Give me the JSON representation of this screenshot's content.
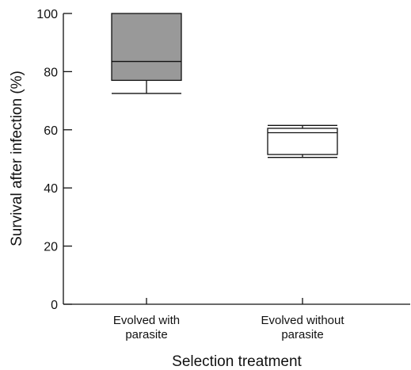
{
  "chart_data": {
    "type": "bar",
    "xlabel": "Selection treatment",
    "ylabel": "Survival after infection (%)",
    "ylim": [
      0,
      100
    ],
    "yticks": [
      "0",
      "20",
      "40",
      "60",
      "80",
      "100"
    ],
    "categories": [
      [
        "Evolved with",
        "parasite"
      ],
      [
        "Evolved without",
        "parasite"
      ]
    ],
    "series": [
      {
        "min": 72.5,
        "q1": 77,
        "median": 83.5,
        "q3": 100,
        "max": 100,
        "color": "#999999"
      },
      {
        "min": 50.5,
        "q1": 51.5,
        "median": 59,
        "q3": 60.5,
        "max": 61.5,
        "color": "#ffffff"
      }
    ]
  }
}
